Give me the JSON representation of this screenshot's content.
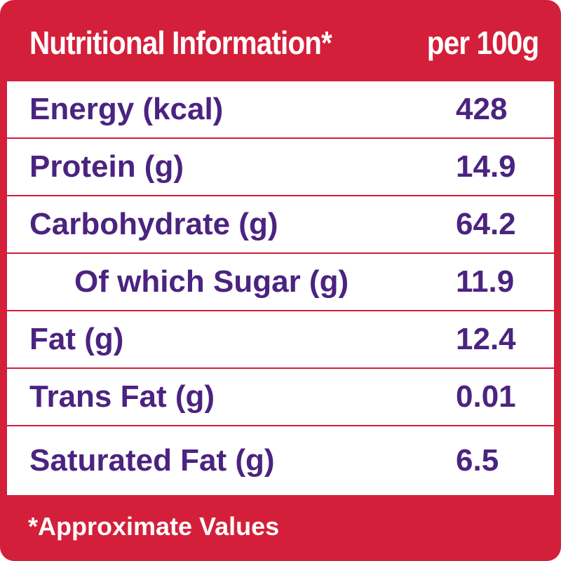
{
  "header": {
    "title": "Nutritional Information*",
    "per_label": "per 100g"
  },
  "rows": [
    {
      "label": "Energy (kcal)",
      "value": "428",
      "indent": false
    },
    {
      "label": "Protein (g)",
      "value": "14.9",
      "indent": false
    },
    {
      "label": "Carbohydrate (g)",
      "value": "64.2",
      "indent": false
    },
    {
      "label": "Of which Sugar (g)",
      "value": "11.9",
      "indent": true
    },
    {
      "label": "Fat (g)",
      "value": "12.4",
      "indent": false
    },
    {
      "label": "Trans Fat (g)",
      "value": "0.01",
      "indent": false
    },
    {
      "label": "Saturated Fat (g)",
      "value": "6.5",
      "indent": false
    }
  ],
  "footer": {
    "note": "*Approximate Values"
  },
  "colors": {
    "brand_red": "#d41f3a",
    "text_purple": "#4b2380",
    "background": "#ffffff"
  }
}
